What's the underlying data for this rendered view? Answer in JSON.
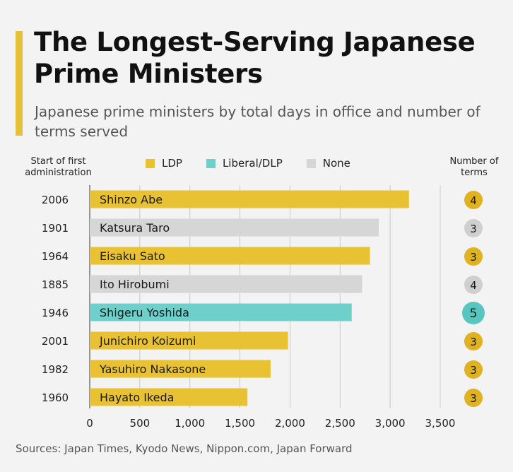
{
  "header": {
    "title": "The Longest-Serving Japanese Prime Ministers",
    "subtitle": "Japanese prime ministers by total days in office and number of terms served"
  },
  "columns": {
    "left_header": "Start of first administration",
    "right_header": "Number of terms"
  },
  "legend": [
    {
      "label": "LDP",
      "color": "#e8c232"
    },
    {
      "label": "Liberal/DLP",
      "color": "#6fd0cb"
    },
    {
      "label": "None",
      "color": "#d6d6d6"
    }
  ],
  "footer": {
    "source": "Sources: Japan Times, Kyodo News, Nippon.com, Japan Forward"
  },
  "chart_data": {
    "type": "bar",
    "orientation": "horizontal",
    "categories": [
      "Shinzo Abe",
      "Katsura Taro",
      "Eisaku Sato",
      "Ito Hirobumi",
      "Shigeru Yoshida",
      "Junichiro Koizumi",
      "Yasuhiro Nakasone",
      "Hayato Ikeda"
    ],
    "values": [
      3188,
      2886,
      2798,
      2720,
      2616,
      1980,
      1806,
      1575
    ],
    "start_years": [
      "2006",
      "1901",
      "1964",
      "1885",
      "1946",
      "2001",
      "1982",
      "1960"
    ],
    "parties": [
      "LDP",
      "None",
      "LDP",
      "None",
      "Liberal/DLP",
      "LDP",
      "LDP",
      "LDP"
    ],
    "terms": [
      4,
      3,
      3,
      4,
      5,
      3,
      3,
      3
    ],
    "xlim": [
      0,
      3500
    ],
    "xticks": [
      "0",
      "500",
      "1,000",
      "1,500",
      "2,000",
      "2,500",
      "3,000",
      "3,500"
    ],
    "grid": "vertical",
    "legend_position": "top"
  }
}
